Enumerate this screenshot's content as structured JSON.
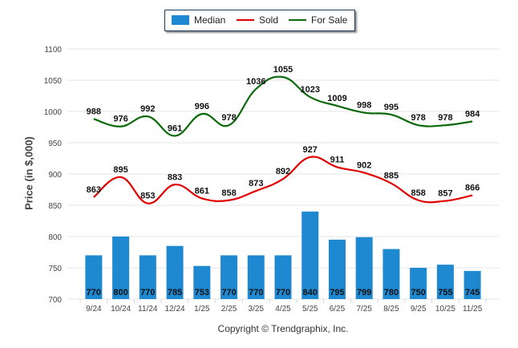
{
  "chart_data": {
    "type": "bar",
    "title": "",
    "xlabel": "",
    "ylabel": "Price (in $,000)",
    "ylim": [
      700,
      1100
    ],
    "yticks": [
      700,
      750,
      800,
      850,
      900,
      950,
      1000,
      1050,
      1100
    ],
    "grid": true,
    "legend_position": "top-center",
    "categories": [
      "9/24",
      "10/24",
      "11/24",
      "12/24",
      "1/25",
      "2/25",
      "3/25",
      "4/25",
      "5/25",
      "6/25",
      "7/25",
      "8/25",
      "9/25",
      "10/25",
      "11/25"
    ],
    "series": [
      {
        "name": "Median",
        "type": "bar",
        "color": "#1e88d0",
        "values": [
          770,
          800,
          770,
          785,
          753,
          770,
          770,
          770,
          840,
          795,
          799,
          780,
          750,
          755,
          745
        ]
      },
      {
        "name": "Sold",
        "type": "line",
        "color": "#e00000",
        "values": [
          863,
          895,
          853,
          883,
          861,
          858,
          873,
          892,
          927,
          911,
          902,
          885,
          858,
          857,
          866
        ]
      },
      {
        "name": "For Sale",
        "type": "line",
        "color": "#0a6a0a",
        "values": [
          988,
          976,
          992,
          961,
          996,
          978,
          1036,
          1055,
          1023,
          1009,
          998,
          995,
          978,
          978,
          984
        ]
      }
    ]
  },
  "legend": {
    "items": [
      {
        "label": "Median"
      },
      {
        "label": "Sold"
      },
      {
        "label": "For Sale"
      }
    ]
  },
  "footer": {
    "copyright": "Copyright © Trendgraphix, Inc."
  }
}
